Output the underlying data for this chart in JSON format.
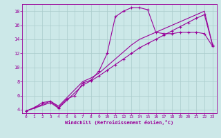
{
  "xlabel": "Windchill (Refroidissement éolien,°C)",
  "bg_color": "#cce8e8",
  "grid_color": "#aacccc",
  "line_color": "#990099",
  "xlim": [
    -0.5,
    23.5
  ],
  "ylim": [
    3.5,
    19.0
  ],
  "xticks": [
    0,
    1,
    2,
    3,
    4,
    5,
    6,
    7,
    8,
    9,
    10,
    11,
    12,
    13,
    14,
    15,
    16,
    17,
    18,
    19,
    20,
    21,
    22,
    23
  ],
  "yticks": [
    4,
    6,
    8,
    10,
    12,
    14,
    16,
    18
  ],
  "line1_x": [
    0,
    1,
    2,
    3,
    4,
    5,
    6,
    7,
    8,
    9,
    10,
    11,
    12,
    13,
    14,
    15,
    16,
    17,
    18,
    19,
    20,
    21,
    22,
    23
  ],
  "line1_y": [
    3.8,
    4.3,
    5.0,
    5.2,
    4.3,
    5.5,
    6.0,
    7.8,
    8.2,
    9.5,
    12.0,
    17.2,
    18.0,
    18.5,
    18.5,
    18.2,
    15.0,
    14.8,
    14.8,
    15.0,
    15.0,
    15.0,
    14.8,
    13.0
  ],
  "line2_x": [
    0,
    3,
    4,
    7,
    8,
    9,
    10,
    11,
    12,
    13,
    14,
    15,
    16,
    17,
    18,
    19,
    20,
    21,
    22,
    23
  ],
  "line2_y": [
    3.8,
    5.0,
    4.2,
    7.5,
    8.1,
    8.8,
    9.6,
    10.4,
    11.2,
    12.0,
    12.8,
    13.4,
    14.0,
    14.6,
    15.2,
    15.8,
    16.4,
    17.0,
    17.5,
    13.2
  ],
  "line3_x": [
    0,
    3,
    4,
    7,
    8,
    9,
    10,
    11,
    12,
    13,
    14,
    15,
    16,
    17,
    18,
    19,
    20,
    21,
    22,
    23
  ],
  "line3_y": [
    3.8,
    5.2,
    4.5,
    8.0,
    8.5,
    9.2,
    10.2,
    11.2,
    12.2,
    13.2,
    14.0,
    14.5,
    15.0,
    15.5,
    16.0,
    16.5,
    17.0,
    17.5,
    18.0,
    13.2
  ]
}
